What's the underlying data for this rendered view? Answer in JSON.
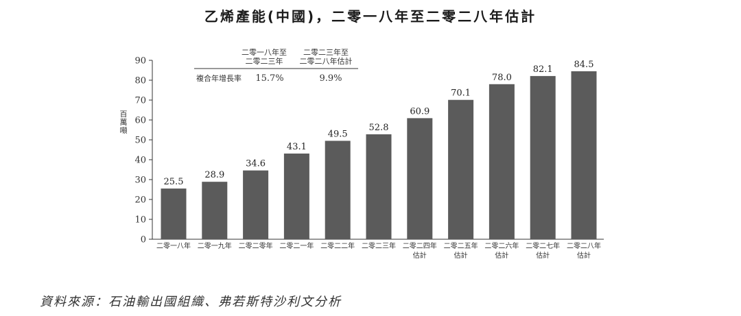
{
  "title": "乙烯產能(中國)，二零一八年至二零二八年估計",
  "source": "資料來源：石油輸出國組織、弗若斯特沙利文分析",
  "cagr_table": {
    "col1": [
      "二零一八年至",
      "二零二三年"
    ],
    "col2": [
      "二零二三年至",
      "二零二八年估計"
    ],
    "row_label": "複合年增長率",
    "values": [
      "15.7%",
      "9.9%"
    ]
  },
  "chart_data": {
    "type": "bar",
    "categories": [
      [
        "二零一八年"
      ],
      [
        "二零一九年"
      ],
      [
        "二零二零年"
      ],
      [
        "二零二一年"
      ],
      [
        "二零二二年"
      ],
      [
        "二零二三年"
      ],
      [
        "二零二四年",
        "估計"
      ],
      [
        "二零二五年",
        "估計"
      ],
      [
        "二零二六年",
        "估計"
      ],
      [
        "二零二七年",
        "估計"
      ],
      [
        "二零二八年",
        "估計"
      ]
    ],
    "values": [
      25.5,
      28.9,
      34.6,
      43.1,
      49.5,
      52.8,
      60.9,
      70.1,
      78.0,
      82.1,
      84.5
    ],
    "value_labels": [
      "25.5",
      "28.9",
      "34.6",
      "43.1",
      "49.5",
      "52.8",
      "60.9",
      "70.1",
      "78.0",
      "82.1",
      "84.5"
    ],
    "ylabel": "百萬噸",
    "ylim": [
      0,
      90
    ],
    "yticks": [
      0,
      10,
      20,
      30,
      40,
      50,
      60,
      70,
      80,
      90
    ],
    "bar_color": "#5b5b5b",
    "grid": false
  }
}
